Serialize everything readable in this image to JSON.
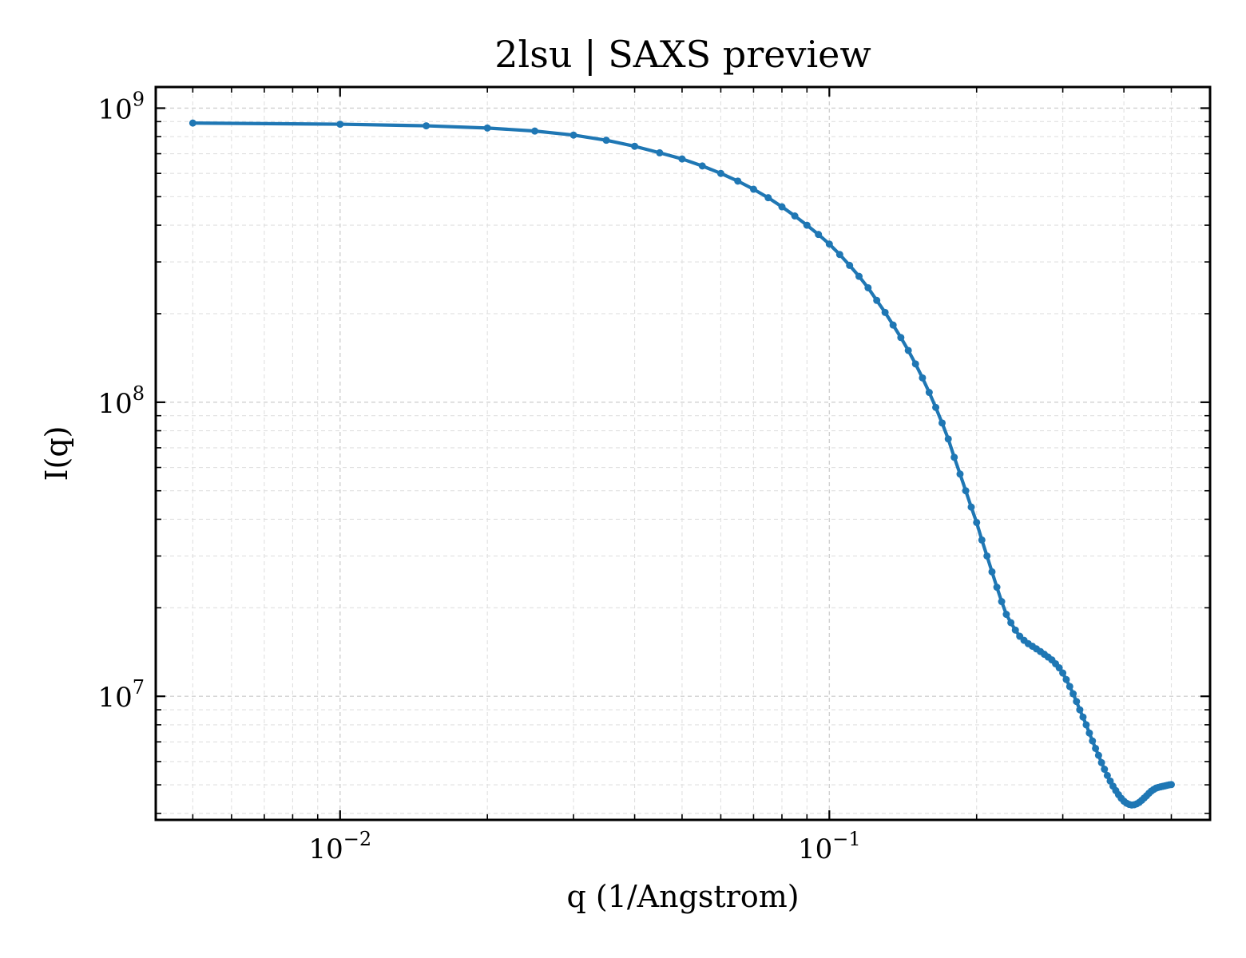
{
  "chart_data": {
    "type": "line",
    "title": "2lsu | SAXS preview",
    "xlabel": "q (1/Angstrom)",
    "ylabel": "I(q)",
    "x_scale": "log",
    "y_scale": "log",
    "xlim": [
      0.0042,
      0.6
    ],
    "ylim": [
      3800000,
      1180000000
    ],
    "grid": true,
    "legend": "none",
    "x_ticks": [
      {
        "value": 0.01,
        "base": "10",
        "exp": "−2"
      },
      {
        "value": 0.1,
        "base": "10",
        "exp": "−1"
      }
    ],
    "y_ticks": [
      {
        "value": 10000000,
        "base": "10",
        "exp": "7"
      },
      {
        "value": 100000000,
        "base": "10",
        "exp": "8"
      },
      {
        "value": 1000000000,
        "base": "10",
        "exp": "9"
      }
    ],
    "series": [
      {
        "color": "#1f77b4",
        "x": [
          0.005,
          0.01,
          0.015,
          0.02,
          0.025,
          0.03,
          0.035,
          0.04,
          0.045,
          0.05,
          0.055,
          0.06,
          0.065,
          0.07,
          0.075,
          0.08,
          0.085,
          0.09,
          0.095,
          0.1,
          0.105,
          0.11,
          0.115,
          0.12,
          0.125,
          0.13,
          0.135,
          0.14,
          0.145,
          0.15,
          0.155,
          0.16,
          0.165,
          0.17,
          0.175,
          0.18,
          0.185,
          0.19,
          0.195,
          0.2,
          0.205,
          0.21,
          0.215,
          0.22,
          0.225,
          0.23,
          0.235,
          0.24,
          0.245,
          0.25,
          0.255,
          0.26,
          0.265,
          0.27,
          0.275,
          0.28,
          0.285,
          0.29,
          0.295,
          0.3,
          0.305,
          0.31,
          0.315,
          0.32,
          0.325,
          0.33,
          0.335,
          0.34,
          0.345,
          0.35,
          0.355,
          0.36,
          0.365,
          0.37,
          0.375,
          0.38,
          0.385,
          0.39,
          0.395,
          0.4,
          0.405,
          0.41,
          0.415,
          0.42,
          0.425,
          0.43,
          0.435,
          0.44,
          0.445,
          0.45,
          0.455,
          0.46,
          0.465,
          0.47,
          0.475,
          0.48,
          0.485,
          0.49,
          0.495,
          0.5
        ],
        "y": [
          890000000,
          882000000,
          871000000,
          856000000,
          836000000,
          810000000,
          778000000,
          742000000,
          705000000,
          672000000,
          636000000,
          600000000,
          565000000,
          530000000,
          496000000,
          462000000,
          430000000,
          400000000,
          372000000,
          345000000,
          318000000,
          292000000,
          268000000,
          245000000,
          222000000,
          202000000,
          183000000,
          166000000,
          150000000,
          135000000,
          121000000,
          108000000,
          96000000,
          85000000,
          75000000,
          65000000,
          57000000,
          50000000,
          44000000,
          39000000,
          34000000,
          30000000,
          26500000,
          23500000,
          21000000,
          19000000,
          17800000,
          16800000,
          16000000,
          15500000,
          15100000,
          14800000,
          14500000,
          14200000,
          13900000,
          13600000,
          13300000,
          12900000,
          12500000,
          12000000,
          11400000,
          10800000,
          10200000,
          9600000,
          9000000,
          8500000,
          8000000,
          7500000,
          7050000,
          6650000,
          6300000,
          5950000,
          5650000,
          5380000,
          5150000,
          4950000,
          4780000,
          4630000,
          4500000,
          4400000,
          4330000,
          4290000,
          4270000,
          4280000,
          4310000,
          4360000,
          4430000,
          4510000,
          4590000,
          4680000,
          4760000,
          4820000,
          4870000,
          4900000,
          4920000,
          4940000,
          4960000,
          4980000,
          5000000,
          5010000
        ]
      }
    ]
  }
}
